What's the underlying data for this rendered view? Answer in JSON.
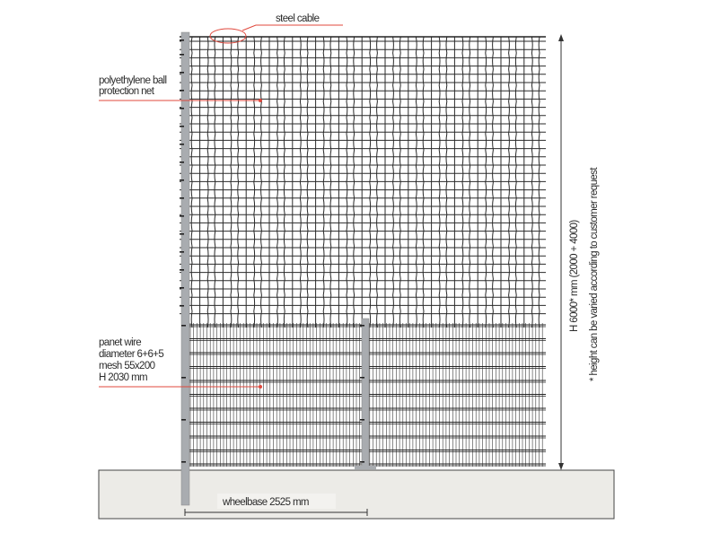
{
  "labels": {
    "steel_cable": "steel cable",
    "net_line1": "polyethylene ball",
    "net_line2": "protection net",
    "panel_line1": "panet wire",
    "panel_line2": "diameter 6+6+5",
    "panel_line3": "mesh 55x200",
    "panel_line4": "H 2030 mm",
    "wheelbase": "wheelbase 2525 mm",
    "height": "H 6000* mm (2000 + 4000)",
    "height_note": "* height can be varied according to customer request"
  },
  "colors": {
    "leader": "#e0483c",
    "mesh": "#2a2a2a",
    "post": "#a9acb0",
    "ground": "#ecebe7"
  }
}
